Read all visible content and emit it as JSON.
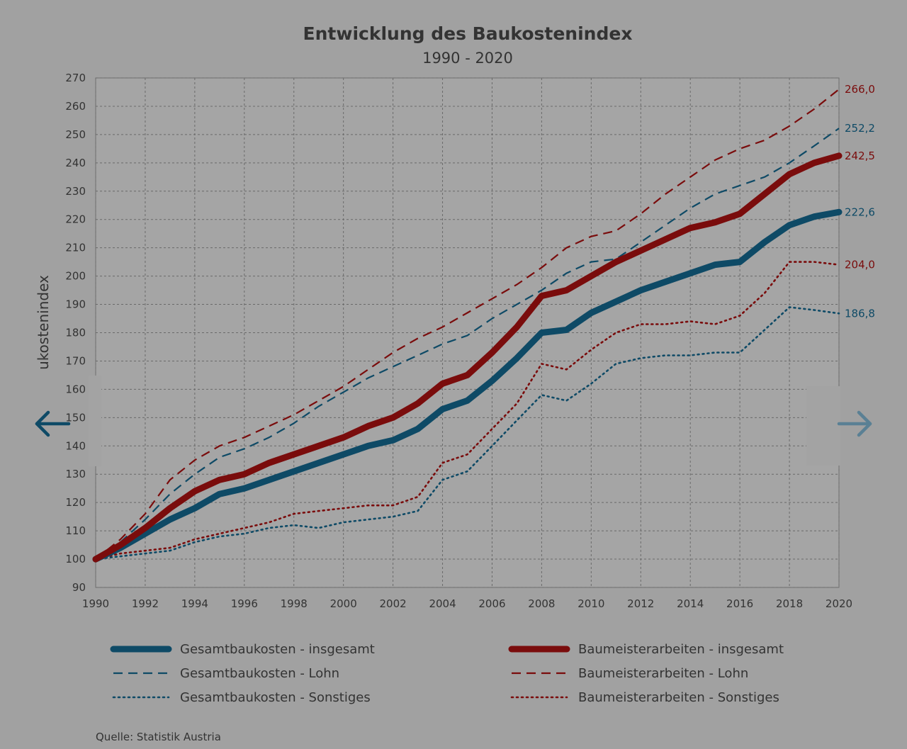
{
  "chart_data": {
    "type": "line",
    "title": "Entwicklung des Baukostenindex",
    "subtitle": "1990 - 2020",
    "ylabel": "ukostenindex",
    "ylim": [
      90,
      270
    ],
    "yticks": [
      "90",
      "100",
      "110",
      "120",
      "130",
      "140",
      "150",
      "160",
      "170",
      "180",
      "190",
      "200",
      "210",
      "220",
      "230",
      "240",
      "250",
      "260",
      "270"
    ],
    "xlim": [
      1990,
      2020
    ],
    "xticks": [
      "1990",
      "1992",
      "1994",
      "1996",
      "1998",
      "2000",
      "2002",
      "2004",
      "2006",
      "2008",
      "2010",
      "2012",
      "2014",
      "2016",
      "2018",
      "2020"
    ],
    "grid": true,
    "legend_position": "bottom",
    "x": [
      1990,
      1991,
      1992,
      1993,
      1994,
      1995,
      1996,
      1997,
      1998,
      1999,
      2000,
      2001,
      2002,
      2003,
      2004,
      2005,
      2006,
      2007,
      2008,
      2009,
      2010,
      2011,
      2012,
      2013,
      2014,
      2015,
      2016,
      2017,
      2018,
      2019,
      2020
    ],
    "series": [
      {
        "name": "Gesamtbaukosten - insgesamt",
        "color": "#0e4a66",
        "style": "solid-thick",
        "end_label": "222,6",
        "values": [
          100,
          104,
          109,
          114,
          118,
          123,
          125,
          128,
          131,
          134,
          137,
          140,
          142,
          146,
          153,
          156,
          163,
          171,
          180,
          181,
          187,
          191,
          195,
          198,
          201,
          204,
          205,
          212,
          218,
          221,
          222.6
        ]
      },
      {
        "name": "Baumeisterarbeiten - insgesamt",
        "color": "#7a0c0c",
        "style": "solid-thick",
        "end_label": "242,5",
        "values": [
          100,
          105,
          111,
          118,
          124,
          128,
          130,
          134,
          137,
          140,
          143,
          147,
          150,
          155,
          162,
          165,
          173,
          182,
          193,
          195,
          200,
          205,
          209,
          213,
          217,
          219,
          222,
          229,
          236,
          240,
          242.5
        ]
      },
      {
        "name": "Gesamtbaukosten - Lohn",
        "color": "#0e4a66",
        "style": "dashed",
        "end_label": "252,2",
        "values": [
          100,
          106,
          114,
          123,
          130,
          136,
          139,
          143,
          148,
          154,
          159,
          164,
          168,
          172,
          176,
          179,
          185,
          190,
          195,
          201,
          205,
          206,
          212,
          218,
          224,
          229,
          232,
          235,
          240,
          246,
          252.2
        ]
      },
      {
        "name": "Baumeisterarbeiten - Lohn",
        "color": "#7a0c0c",
        "style": "dashed",
        "end_label": "266,0",
        "values": [
          100,
          107,
          116,
          128,
          135,
          140,
          143,
          147,
          151,
          156,
          161,
          167,
          173,
          178,
          182,
          187,
          192,
          197,
          203,
          210,
          214,
          216,
          222,
          229,
          235,
          241,
          245,
          248,
          253,
          259,
          266.0
        ]
      },
      {
        "name": "Gesamtbaukosten - Sonstiges",
        "color": "#0e4a66",
        "style": "dotted",
        "end_label": "186,8",
        "values": [
          100,
          101,
          102,
          103,
          106,
          108,
          109,
          111,
          112,
          111,
          113,
          114,
          115,
          117,
          128,
          131,
          140,
          149,
          158,
          156,
          162,
          169,
          171,
          172,
          172,
          173,
          173,
          181,
          189,
          188,
          186.8
        ]
      },
      {
        "name": "Baumeisterarbeiten - Sonstiges",
        "color": "#7a0c0c",
        "style": "dotted",
        "end_label": "204,0",
        "values": [
          100,
          102,
          103,
          104,
          107,
          109,
          111,
          113,
          116,
          117,
          118,
          119,
          119,
          122,
          134,
          137,
          146,
          155,
          169,
          167,
          174,
          180,
          183,
          183,
          184,
          183,
          186,
          194,
          205,
          205,
          204.0
        ]
      }
    ],
    "source": "Quelle: Statistik Austria"
  },
  "nav": {
    "prev_icon": "arrow-left-icon",
    "next_icon": "arrow-right-icon",
    "prev_color": "#0e4a66",
    "next_color": "#5a8094"
  }
}
